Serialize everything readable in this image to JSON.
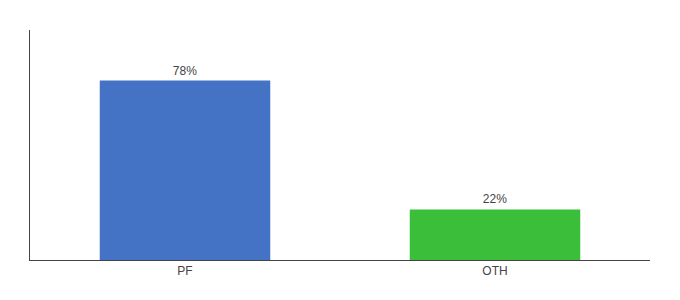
{
  "chart_data": {
    "type": "bar",
    "categories": [
      "PF",
      "OTH"
    ],
    "values": [
      78,
      22
    ],
    "value_labels": [
      "78%",
      "22%"
    ],
    "colors": [
      "#4472c4",
      "#3bbf3b"
    ],
    "ylim": [
      0,
      100
    ],
    "grid": false,
    "data_labels": true,
    "tick_labels": "x"
  }
}
